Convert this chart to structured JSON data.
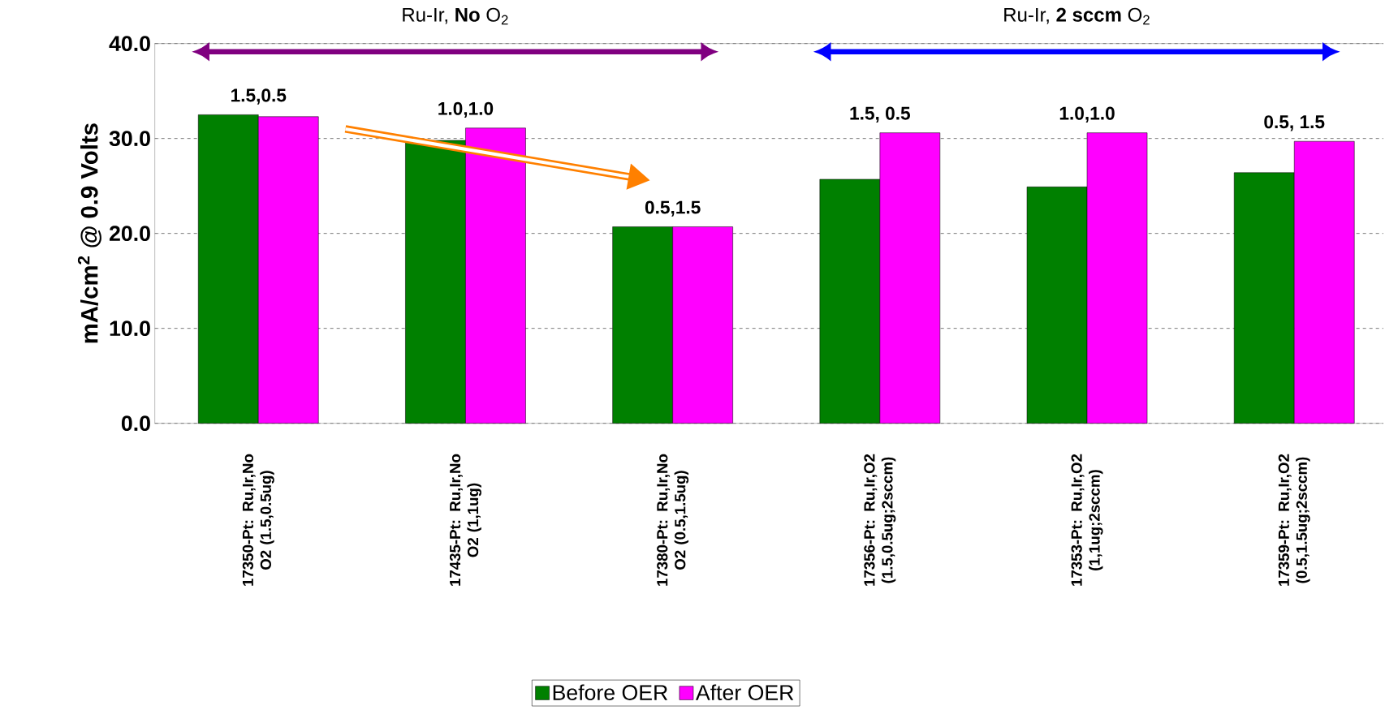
{
  "chart_data": {
    "type": "bar",
    "ylabel": "mA/cm$^{2}$ @ 0.9 Volts",
    "categories": [
      "17350-Pt: Ru,Ir,No O2 (1.5,0.5ug)",
      "17435-Pt: Ru,Ir,No O2 (1,1ug)",
      "17380-Pt: Ru,Ir,No O2 (0.5,1.5ug)",
      "17356-Pt: Ru,Ir,O2 (1.5,0.5ug;2sccm)",
      "17353-Pt: Ru,Ir,O2 (1,1ug;2sccm)",
      "17359-Pt: Ru,Ir,O2 (0.5,1.5ug;2sccm)"
    ],
    "series": [
      {
        "name": "Before OER",
        "color": "#008000",
        "values": [
          32.5,
          29.8,
          20.7,
          25.7,
          24.9,
          26.4
        ]
      },
      {
        "name": "After OER",
        "color": "#ff00ff",
        "values": [
          32.3,
          31.1,
          20.7,
          30.6,
          30.6,
          29.7
        ]
      }
    ],
    "ylim": [
      0,
      40
    ],
    "yticks": [
      {
        "value": 0,
        "label": "0.0"
      },
      {
        "value": 10,
        "label": "10.0"
      },
      {
        "value": 20,
        "label": "20.0"
      },
      {
        "value": 30,
        "label": "30.0"
      },
      {
        "value": 40,
        "label": "40.0"
      }
    ],
    "grid": "y",
    "legend": "bottom",
    "annotations": [
      "Ru-Ir, **No** O$_{2}$",
      "Ru-Ir, **2 sccm** O$_{2}$",
      "1.5,0.5",
      "1.0,1.0",
      "0.5,1.5",
      "1.5, 0.5",
      "1.0,1.0",
      "0.5, 1.5"
    ]
  }
}
